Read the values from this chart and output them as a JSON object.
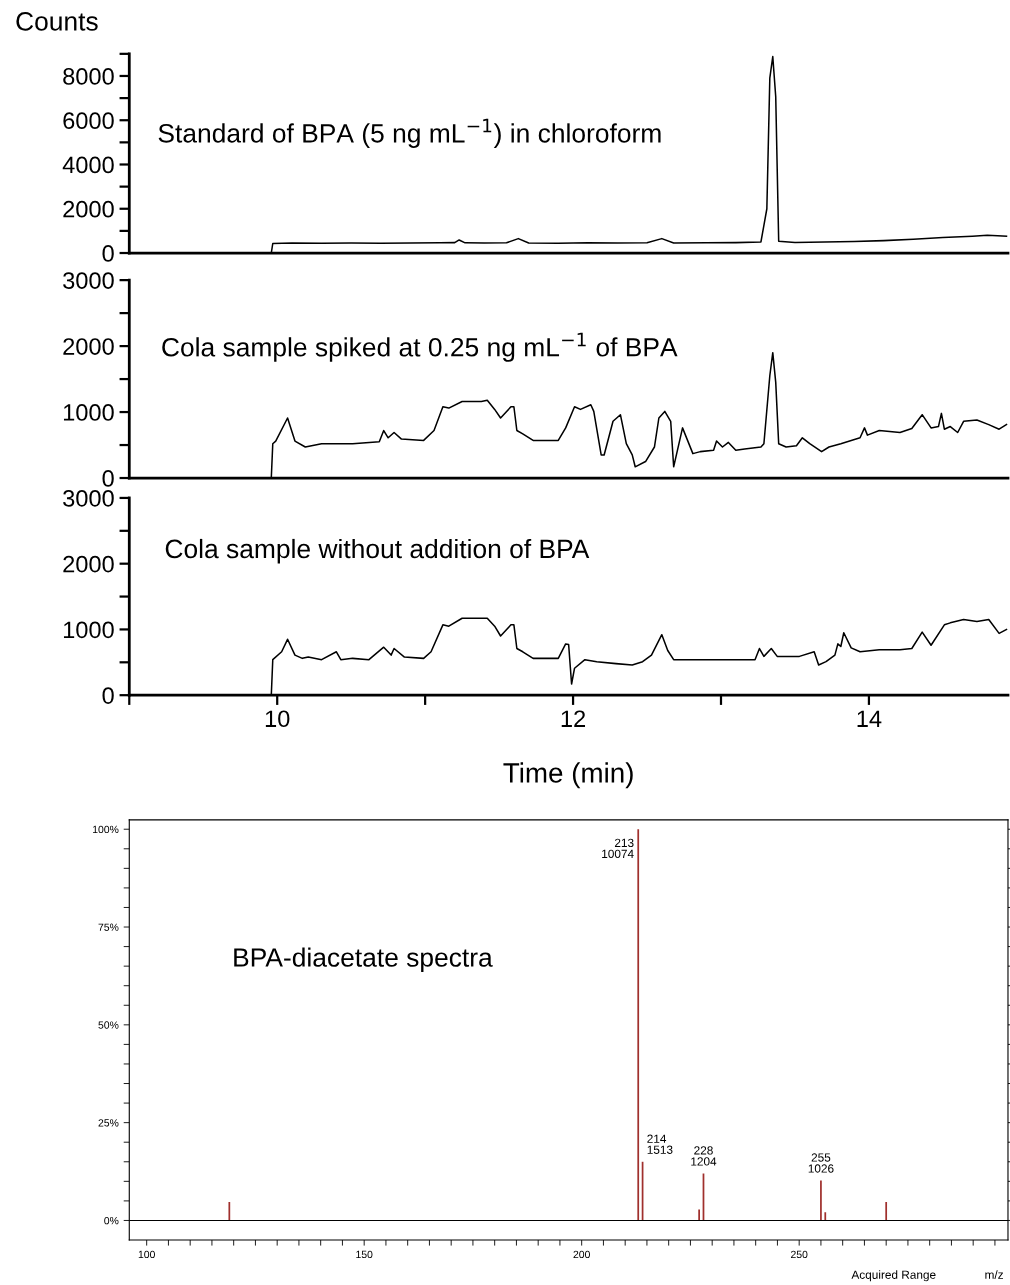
{
  "chart_data": [
    {
      "type": "line",
      "ylabel": "Counts",
      "tick_labels": "y",
      "xlim": [
        9,
        14.94
      ],
      "ylim": [
        0,
        9000
      ],
      "yticks": [
        0,
        {
          "value": 1000,
          "label": null
        },
        2000,
        {
          "value": 3000,
          "label": null
        },
        4000,
        {
          "value": 5000,
          "label": null
        },
        6000,
        {
          "value": 7000,
          "label": null
        },
        8000,
        {
          "value": 9000,
          "label": null
        }
      ],
      "annotations": [
        "Standard of BPA (5 ng mL$^{−1}$) in chloroform"
      ],
      "x": [
        9.0,
        9.96,
        9.97,
        10.1,
        10.3,
        10.5,
        10.7,
        10.9,
        11.1,
        11.2,
        11.23,
        11.27,
        11.4,
        11.55,
        11.63,
        11.7,
        11.9,
        12.1,
        12.3,
        12.5,
        12.6,
        12.68,
        12.9,
        13.1,
        13.27,
        13.31,
        13.33,
        13.35,
        13.37,
        13.39,
        13.5,
        13.7,
        13.9,
        14.1,
        14.3,
        14.5,
        14.7,
        14.8,
        14.87,
        14.93
      ],
      "series": [
        {
          "color": "#000000",
          "values": [
            0,
            0,
            430,
            450,
            440,
            450,
            440,
            450,
            460,
            470,
            590,
            460,
            450,
            460,
            650,
            450,
            440,
            460,
            450,
            460,
            650,
            450,
            460,
            470,
            500,
            2000,
            7900,
            8880,
            7060,
            530,
            480,
            500,
            520,
            560,
            620,
            700,
            760,
            800,
            780,
            760
          ]
        }
      ]
    },
    {
      "type": "line",
      "tick_labels": "y",
      "xlim": [
        9,
        14.94
      ],
      "ylim": [
        0,
        3000
      ],
      "yticks": [
        0,
        {
          "value": 500,
          "label": null
        },
        1000,
        {
          "value": 1500,
          "label": null
        },
        2000,
        {
          "value": 2500,
          "label": null
        },
        3000
      ],
      "annotations": [
        "Cola sample spiked at 0.25 ng mL$^{−1}$ of BPA"
      ],
      "x": [
        9.0,
        9.96,
        9.97,
        9.99,
        10.07,
        10.12,
        10.19,
        10.3,
        10.51,
        10.69,
        10.72,
        10.75,
        10.79,
        10.84,
        10.99,
        11.06,
        11.12,
        11.16,
        11.25,
        11.38,
        11.42,
        11.47,
        11.51,
        11.58,
        11.6,
        11.62,
        11.66,
        11.73,
        11.9,
        11.95,
        12.01,
        12.05,
        12.12,
        12.14,
        12.19,
        12.21,
        12.27,
        12.32,
        12.36,
        12.4,
        12.42,
        12.49,
        12.55,
        12.58,
        12.62,
        12.66,
        12.68,
        12.74,
        12.81,
        12.86,
        12.95,
        12.97,
        13.01,
        13.05,
        13.1,
        13.16,
        13.27,
        13.29,
        13.33,
        13.35,
        13.37,
        13.39,
        13.44,
        13.51,
        13.55,
        13.6,
        13.68,
        13.73,
        13.81,
        13.94,
        13.97,
        13.99,
        14.07,
        14.21,
        14.29,
        14.36,
        14.42,
        14.47,
        14.49,
        14.51,
        14.55,
        14.6,
        14.64,
        14.73,
        14.81,
        14.88,
        14.93
      ],
      "series": [
        {
          "color": "#000000",
          "values": [
            0,
            0,
            520,
            560,
            910,
            560,
            470,
            520,
            520,
            550,
            720,
            610,
            690,
            590,
            570,
            720,
            1080,
            1060,
            1160,
            1160,
            1180,
            1040,
            910,
            1080,
            1080,
            720,
            670,
            570,
            570,
            760,
            1080,
            1040,
            1110,
            1010,
            350,
            350,
            860,
            960,
            520,
            350,
            170,
            250,
            470,
            910,
            1010,
            860,
            170,
            760,
            370,
            400,
            420,
            560,
            470,
            540,
            420,
            440,
            470,
            520,
            1550,
            1900,
            1450,
            520,
            470,
            490,
            610,
            520,
            400,
            470,
            520,
            610,
            760,
            650,
            720,
            690,
            750,
            960,
            760,
            780,
            980,
            740,
            780,
            690,
            860,
            880,
            810,
            740,
            810
          ]
        }
      ]
    },
    {
      "type": "line",
      "xlabel": "Time (min)",
      "xlim": [
        9,
        14.94
      ],
      "ylim": [
        0,
        3000
      ],
      "xticks": [
        {
          "value": 9,
          "label": null
        },
        10,
        {
          "value": 11,
          "label": null
        },
        12,
        {
          "value": 13,
          "label": null
        },
        14
      ],
      "yticks": [
        0,
        {
          "value": 500,
          "label": null
        },
        1000,
        {
          "value": 1500,
          "label": null
        },
        2000,
        {
          "value": 2500,
          "label": null
        },
        3000
      ],
      "annotations": [
        "Cola sample without addition of BPA"
      ],
      "x": [
        9.0,
        9.96,
        9.97,
        10.03,
        10.07,
        10.12,
        10.17,
        10.21,
        10.3,
        10.4,
        10.43,
        10.51,
        10.62,
        10.72,
        10.77,
        10.79,
        10.86,
        10.99,
        11.04,
        11.12,
        11.16,
        11.25,
        11.42,
        11.47,
        11.51,
        11.58,
        11.6,
        11.62,
        11.66,
        11.73,
        11.9,
        11.95,
        11.97,
        11.99,
        12.01,
        12.08,
        12.16,
        12.29,
        12.4,
        12.47,
        12.53,
        12.6,
        12.64,
        12.68,
        12.81,
        13.08,
        13.23,
        13.26,
        13.29,
        13.34,
        13.38,
        13.53,
        13.63,
        13.66,
        13.71,
        13.77,
        13.79,
        13.81,
        13.83,
        13.88,
        13.94,
        14.07,
        14.21,
        14.29,
        14.36,
        14.42,
        14.51,
        14.55,
        14.64,
        14.73,
        14.81,
        14.88,
        14.93
      ],
      "series": [
        {
          "color": "#000000",
          "values": [
            0,
            0,
            540,
            660,
            850,
            610,
            560,
            580,
            540,
            660,
            540,
            560,
            540,
            730,
            610,
            710,
            580,
            560,
            660,
            1070,
            1050,
            1170,
            1170,
            1050,
            900,
            1070,
            1070,
            710,
            660,
            560,
            560,
            780,
            770,
            170,
            410,
            540,
            510,
            480,
            460,
            510,
            610,
            920,
            680,
            540,
            540,
            540,
            540,
            710,
            590,
            710,
            590,
            590,
            660,
            460,
            510,
            610,
            780,
            740,
            950,
            720,
            660,
            690,
            690,
            710,
            960,
            760,
            1070,
            1100,
            1150,
            1120,
            1150,
            940,
            1000
          ]
        }
      ]
    },
    {
      "type": "bar",
      "xlim": [
        96,
        298
      ],
      "ylim": [
        -5,
        102.4
      ],
      "xticks": [
        100,
        {
          "value": 105,
          "label": null
        },
        {
          "value": 110,
          "label": null
        },
        {
          "value": 115,
          "label": null
        },
        {
          "value": 120,
          "label": null
        },
        {
          "value": 125,
          "label": null
        },
        {
          "value": 130,
          "label": null
        },
        {
          "value": 135,
          "label": null
        },
        {
          "value": 140,
          "label": null
        },
        {
          "value": 145,
          "label": null
        },
        150,
        {
          "value": 155,
          "label": null
        },
        {
          "value": 160,
          "label": null
        },
        {
          "value": 165,
          "label": null
        },
        {
          "value": 170,
          "label": null
        },
        {
          "value": 175,
          "label": null
        },
        {
          "value": 180,
          "label": null
        },
        {
          "value": 185,
          "label": null
        },
        {
          "value": 190,
          "label": null
        },
        {
          "value": 195,
          "label": null
        },
        200,
        {
          "value": 205,
          "label": null
        },
        {
          "value": 210,
          "label": null
        },
        {
          "value": 215,
          "label": null
        },
        {
          "value": 220,
          "label": null
        },
        {
          "value": 225,
          "label": null
        },
        {
          "value": 230,
          "label": null
        },
        {
          "value": 235,
          "label": null
        },
        {
          "value": 240,
          "label": null
        },
        {
          "value": 245,
          "label": null
        },
        250,
        {
          "value": 255,
          "label": null
        },
        {
          "value": 260,
          "label": null
        },
        {
          "value": 265,
          "label": null
        },
        {
          "value": 270,
          "label": null
        },
        {
          "value": 275,
          "label": null
        },
        {
          "value": 280,
          "label": null
        },
        {
          "value": 285,
          "label": null
        },
        {
          "value": 290,
          "label": null
        },
        {
          "value": 295,
          "label": null
        }
      ],
      "yticks": [
        {
          "value": 0,
          "label": "0%"
        },
        {
          "value": 5,
          "label": null
        },
        {
          "value": 10,
          "label": null
        },
        {
          "value": 15,
          "label": null
        },
        {
          "value": 20,
          "label": null
        },
        {
          "value": 25,
          "label": "25%"
        },
        {
          "value": 30,
          "label": null
        },
        {
          "value": 35,
          "label": null
        },
        {
          "value": 40,
          "label": null
        },
        {
          "value": 45,
          "label": null
        },
        {
          "value": 50,
          "label": "50%"
        },
        {
          "value": 55,
          "label": null
        },
        {
          "value": 60,
          "label": null
        },
        {
          "value": 65,
          "label": null
        },
        {
          "value": 70,
          "label": null
        },
        {
          "value": 75,
          "label": "75%"
        },
        {
          "value": 80,
          "label": null
        },
        {
          "value": 85,
          "label": null
        },
        {
          "value": 90,
          "label": null
        },
        {
          "value": 95,
          "label": null
        },
        {
          "value": 100,
          "label": "100%"
        }
      ],
      "annotations": [
        "BPA-diacetate spectra",
        "Acquired Range",
        "m/z",
        {
          "text": "213\n10074",
          "x": 213,
          "y": 100
        },
        {
          "text": "214\n1513",
          "x": 214,
          "y": 15
        },
        {
          "text": "228\n1204",
          "x": 228,
          "y": 12
        },
        {
          "text": "255\n1026",
          "x": 255,
          "y": 10.2
        }
      ],
      "x": [
        119,
        213,
        214,
        227,
        228,
        255,
        256,
        270
      ],
      "color": "#a0302d",
      "values": [
        4.7,
        100,
        15,
        2.8,
        12,
        10.2,
        2.1,
        4.7
      ]
    }
  ]
}
